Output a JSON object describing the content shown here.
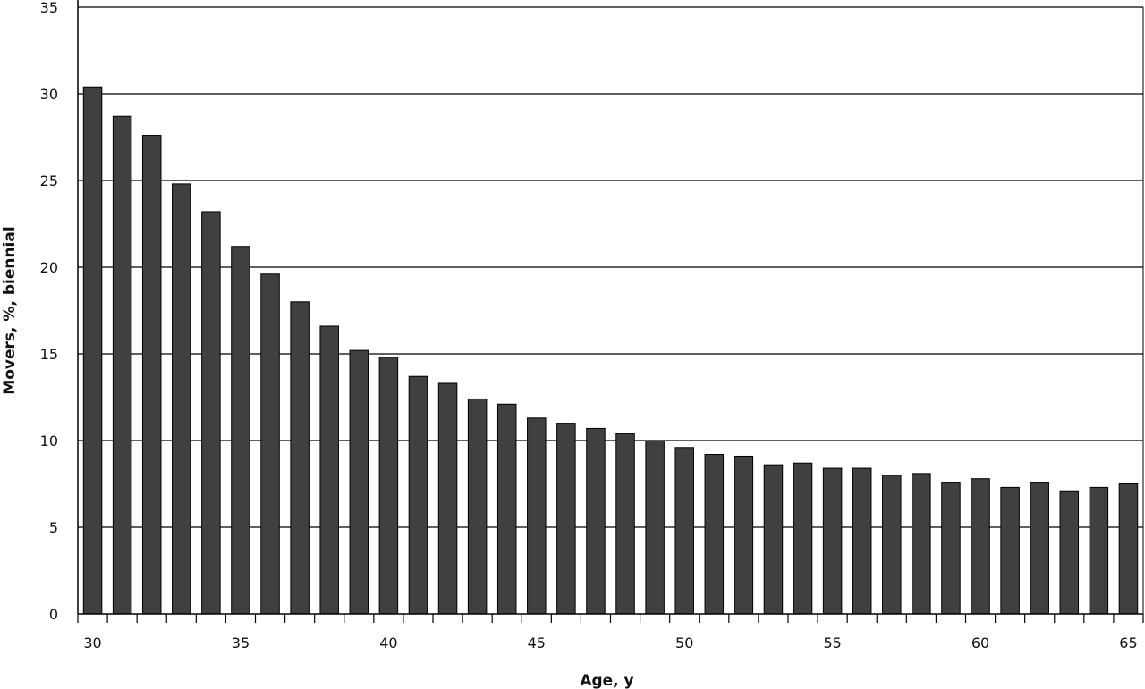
{
  "chart_data": {
    "type": "bar",
    "title": "",
    "xlabel": "Age, y",
    "ylabel": "Movers, %, biennial",
    "x": [
      30,
      31,
      32,
      33,
      34,
      35,
      36,
      37,
      38,
      39,
      40,
      41,
      42,
      43,
      44,
      45,
      46,
      47,
      48,
      49,
      50,
      51,
      52,
      53,
      54,
      55,
      56,
      57,
      58,
      59,
      60,
      61,
      62,
      63,
      64,
      65
    ],
    "values": [
      30.4,
      28.7,
      27.6,
      24.8,
      23.2,
      21.2,
      19.6,
      18.0,
      16.6,
      15.2,
      14.8,
      13.7,
      13.3,
      12.4,
      12.1,
      11.3,
      11.0,
      10.7,
      10.4,
      10.0,
      9.6,
      9.2,
      9.1,
      8.6,
      8.7,
      8.4,
      8.4,
      8.0,
      8.1,
      7.6,
      7.8,
      7.3,
      7.6,
      7.1,
      7.3,
      7.5
    ],
    "xlim": [
      29.5,
      65.5
    ],
    "ylim": [
      0,
      35
    ],
    "y_ticks": [
      "0",
      "5",
      "10",
      "15",
      "20",
      "25",
      "30",
      "35"
    ],
    "x_tick_labels": [
      "30",
      "35",
      "40",
      "45",
      "50",
      "55",
      "60",
      "65"
    ],
    "grid": "horizontal",
    "bar_color": "#404040",
    "bar_edge_color": "#000000",
    "grid_color": "#000000"
  }
}
